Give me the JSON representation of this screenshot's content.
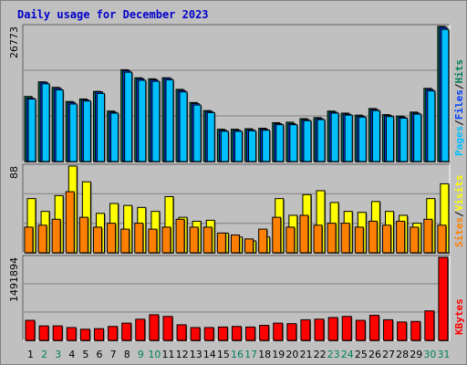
{
  "title": "Daily usage for December 2023",
  "colors": {
    "background": "#c0c0c0",
    "plot_bg": "#c0c0c0",
    "gridline": "#808080",
    "title": "#0000cc",
    "hits": "#00805c",
    "files": "#0040ff",
    "pages": "#00c0ff",
    "visits": "#ffff00",
    "sites": "#ff8000",
    "kbytes": "#ff0000",
    "weekday_label": "#000000",
    "weekend_label": "#00805c"
  },
  "legend": {
    "top": [
      {
        "text": "Pages",
        "color_key": "pages"
      },
      {
        "text": "/",
        "color_key": "slash"
      },
      {
        "text": "Files",
        "color_key": "files"
      },
      {
        "text": "/",
        "color_key": "slash"
      },
      {
        "text": "Hits",
        "color_key": "hits"
      }
    ],
    "middle": [
      {
        "text": "Sites",
        "color_key": "sites"
      },
      {
        "text": "/",
        "color_key": "slash"
      },
      {
        "text": "Visits",
        "color_key": "visits"
      }
    ],
    "bottom": [
      {
        "text": "KBytes",
        "color_key": "kbytes"
      }
    ]
  },
  "chart_data": {
    "type": "bar",
    "title": "Daily usage for December 2023",
    "x": [
      "1",
      "2",
      "3",
      "4",
      "5",
      "6",
      "7",
      "8",
      "9",
      "10",
      "11",
      "12",
      "13",
      "14",
      "15",
      "16",
      "17",
      "18",
      "19",
      "20",
      "21",
      "22",
      "23",
      "24",
      "25",
      "26",
      "27",
      "28",
      "29",
      "30",
      "31"
    ],
    "weekend_days": [
      "2",
      "3",
      "9",
      "10",
      "16",
      "17",
      "23",
      "24",
      "30",
      "31"
    ],
    "panels": [
      {
        "name": "top",
        "ymax_label": "26773",
        "ymax": 26773,
        "series": [
          {
            "name": "Hits",
            "values": [
              12900,
              15800,
              14700,
              11900,
              12400,
              13900,
              10000,
              18200,
              16600,
              16400,
              16600,
              14300,
              11700,
              10100,
              6400,
              6400,
              6500,
              6600,
              7700,
              7800,
              8500,
              8700,
              10000,
              9600,
              9200,
              10500,
              9300,
              9000,
              9800,
              14500,
              26800
            ]
          },
          {
            "name": "Files",
            "values": [
              12600,
              15700,
              14500,
              11700,
              12200,
              13800,
              9800,
              18000,
              16400,
              16200,
              16500,
              14100,
              11500,
              9900,
              6200,
              6200,
              6300,
              6400,
              7500,
              7500,
              8300,
              8500,
              9800,
              9400,
              9000,
              10300,
              9100,
              8800,
              9600,
              14300,
              26600
            ]
          },
          {
            "name": "Pages",
            "values": [
              12400,
              15400,
              14200,
              11400,
              12000,
              13500,
              9600,
              17700,
              16100,
              15900,
              16200,
              13800,
              11200,
              9700,
              6000,
              6000,
              6100,
              6200,
              7300,
              7300,
              8100,
              8300,
              9600,
              9200,
              8800,
              10100,
              8900,
              8600,
              9400,
              14000,
              26200
            ]
          }
        ]
      },
      {
        "name": "middle",
        "ymax_label": "88",
        "ymax": 88,
        "series": [
          {
            "name": "Visits",
            "values": [
              55,
              42,
              58,
              88,
              72,
              40,
              50,
              48,
              46,
              42,
              57,
              36,
              32,
              33,
              20,
              16,
              12,
              16,
              55,
              38,
              59,
              63,
              51,
              42,
              41,
              52,
              42,
              38,
              30,
              55,
              70
            ]
          },
          {
            "name": "Sites",
            "values": [
              26,
              28,
              34,
              62,
              36,
              26,
              30,
              24,
              30,
              24,
              26,
              34,
              26,
              26,
              20,
              18,
              14,
              24,
              36,
              26,
              38,
              28,
              30,
              30,
              26,
              32,
              28,
              32,
              26,
              34,
              28
            ]
          }
        ]
      },
      {
        "name": "bottom",
        "ymax_label": "1491894",
        "ymax": 1491894,
        "series": [
          {
            "name": "KBytes",
            "values": [
              360000,
              260000,
              260000,
              230000,
              200000,
              210000,
              250000,
              310000,
              380000,
              460000,
              430000,
              280000,
              230000,
              230000,
              240000,
              250000,
              240000,
              270000,
              310000,
              300000,
              370000,
              380000,
              410000,
              430000,
              360000,
              450000,
              370000,
              330000,
              340000,
              530000,
              1491894
            ]
          }
        ]
      }
    ]
  }
}
